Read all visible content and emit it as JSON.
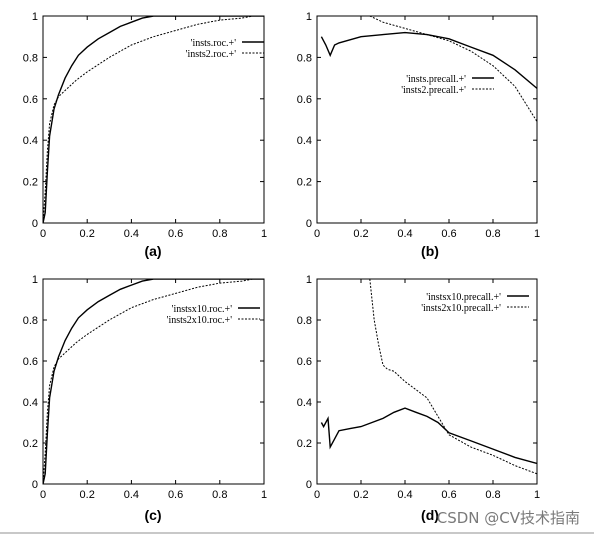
{
  "chart_data": [
    {
      "type": "line",
      "caption": "(a)",
      "xlim": [
        0,
        1
      ],
      "ylim": [
        0,
        1
      ],
      "xticks": [
        "0",
        "0.2",
        "0.4",
        "0.6",
        "0.8",
        "1"
      ],
      "yticks": [
        "0",
        "0.2",
        "0.4",
        "0.6",
        "0.8",
        "1"
      ],
      "legend_position": "top-right",
      "series": [
        {
          "name": "'insts.roc.+'",
          "style": "solid",
          "x": [
            0,
            0.01,
            0.02,
            0.03,
            0.05,
            0.07,
            0.1,
            0.13,
            0.16,
            0.2,
            0.25,
            0.3,
            0.35,
            0.4,
            0.45,
            0.5,
            0.55,
            1.0
          ],
          "y": [
            0,
            0.05,
            0.25,
            0.42,
            0.55,
            0.62,
            0.7,
            0.76,
            0.81,
            0.85,
            0.89,
            0.92,
            0.95,
            0.97,
            0.99,
            1.0,
            1.0,
            1.0
          ]
        },
        {
          "name": "'insts2.roc.+'",
          "style": "dashed",
          "x": [
            0,
            0.01,
            0.02,
            0.03,
            0.05,
            0.07,
            0.1,
            0.15,
            0.2,
            0.3,
            0.4,
            0.5,
            0.6,
            0.7,
            0.8,
            0.9,
            0.95,
            1.0
          ],
          "y": [
            0,
            0.15,
            0.35,
            0.48,
            0.57,
            0.61,
            0.64,
            0.69,
            0.73,
            0.8,
            0.86,
            0.9,
            0.93,
            0.96,
            0.98,
            0.99,
            1.0,
            1.0
          ]
        }
      ]
    },
    {
      "type": "line",
      "caption": "(b)",
      "xlim": [
        0,
        1
      ],
      "ylim": [
        0,
        1
      ],
      "xticks": [
        "0",
        "0.2",
        "0.4",
        "0.6",
        "0.8",
        "1"
      ],
      "yticks": [
        "0",
        "0.2",
        "0.4",
        "0.6",
        "0.8",
        "1"
      ],
      "legend_position": "center-right",
      "series": [
        {
          "name": "'insts.precall.+'",
          "style": "solid",
          "x": [
            0.02,
            0.04,
            0.06,
            0.08,
            0.1,
            0.2,
            0.3,
            0.4,
            0.5,
            0.6,
            0.7,
            0.8,
            0.9,
            1.0
          ],
          "y": [
            0.9,
            0.86,
            0.81,
            0.86,
            0.87,
            0.9,
            0.91,
            0.92,
            0.91,
            0.89,
            0.85,
            0.81,
            0.74,
            0.65
          ]
        },
        {
          "name": "'insts2.precall.+'",
          "style": "dashed",
          "x": [
            0.24,
            0.3,
            0.4,
            0.5,
            0.6,
            0.7,
            0.8,
            0.9,
            1.0
          ],
          "y": [
            1.0,
            0.97,
            0.94,
            0.91,
            0.88,
            0.83,
            0.76,
            0.66,
            0.49
          ]
        }
      ]
    },
    {
      "type": "line",
      "caption": "(c)",
      "xlim": [
        0,
        1
      ],
      "ylim": [
        0,
        1
      ],
      "xticks": [
        "0",
        "0.2",
        "0.4",
        "0.6",
        "0.8",
        "1"
      ],
      "yticks": [
        "0",
        "0.2",
        "0.4",
        "0.6",
        "0.8",
        "1"
      ],
      "legend_position": "top-right",
      "series": [
        {
          "name": "'instsx10.roc.+'",
          "style": "solid",
          "x": [
            0,
            0.01,
            0.02,
            0.03,
            0.05,
            0.07,
            0.1,
            0.13,
            0.16,
            0.2,
            0.25,
            0.3,
            0.35,
            0.4,
            0.45,
            0.5,
            0.53,
            1.0
          ],
          "y": [
            0,
            0.05,
            0.25,
            0.42,
            0.55,
            0.62,
            0.7,
            0.76,
            0.81,
            0.85,
            0.89,
            0.92,
            0.95,
            0.97,
            0.99,
            1.0,
            1.0,
            1.0
          ]
        },
        {
          "name": "'insts2x10.roc.+'",
          "style": "dashed",
          "x": [
            0,
            0.01,
            0.02,
            0.03,
            0.05,
            0.07,
            0.1,
            0.15,
            0.2,
            0.3,
            0.4,
            0.5,
            0.6,
            0.7,
            0.8,
            0.9,
            0.95,
            1.0
          ],
          "y": [
            0,
            0.15,
            0.35,
            0.48,
            0.57,
            0.61,
            0.64,
            0.69,
            0.73,
            0.8,
            0.86,
            0.9,
            0.93,
            0.96,
            0.98,
            0.99,
            1.0,
            1.0
          ]
        }
      ]
    },
    {
      "type": "line",
      "caption": "(d)",
      "xlim": [
        0,
        1
      ],
      "ylim": [
        0,
        1
      ],
      "xticks": [
        "0",
        "0.2",
        "0.4",
        "0.6",
        "0.8",
        "1"
      ],
      "yticks": [
        "0",
        "0.2",
        "0.4",
        "0.6",
        "0.8",
        "1"
      ],
      "legend_position": "top-right",
      "series": [
        {
          "name": "'instsx10.precall.+'",
          "style": "solid",
          "x": [
            0.02,
            0.03,
            0.05,
            0.06,
            0.08,
            0.1,
            0.15,
            0.2,
            0.25,
            0.3,
            0.35,
            0.4,
            0.45,
            0.5,
            0.55,
            0.6,
            0.7,
            0.8,
            0.9,
            1.0
          ],
          "y": [
            0.3,
            0.28,
            0.32,
            0.18,
            0.22,
            0.26,
            0.27,
            0.28,
            0.3,
            0.32,
            0.35,
            0.37,
            0.35,
            0.33,
            0.3,
            0.25,
            0.21,
            0.17,
            0.13,
            0.1
          ]
        },
        {
          "name": "'insts2x10.precall.+'",
          "style": "dashed",
          "x": [
            0.24,
            0.26,
            0.28,
            0.3,
            0.32,
            0.35,
            0.4,
            0.45,
            0.5,
            0.55,
            0.6,
            0.7,
            0.8,
            0.9,
            1.0
          ],
          "y": [
            1.0,
            0.8,
            0.68,
            0.58,
            0.56,
            0.55,
            0.5,
            0.46,
            0.42,
            0.33,
            0.24,
            0.18,
            0.14,
            0.09,
            0.05
          ]
        }
      ]
    }
  ],
  "watermark": "CSDN @CV技术指南"
}
